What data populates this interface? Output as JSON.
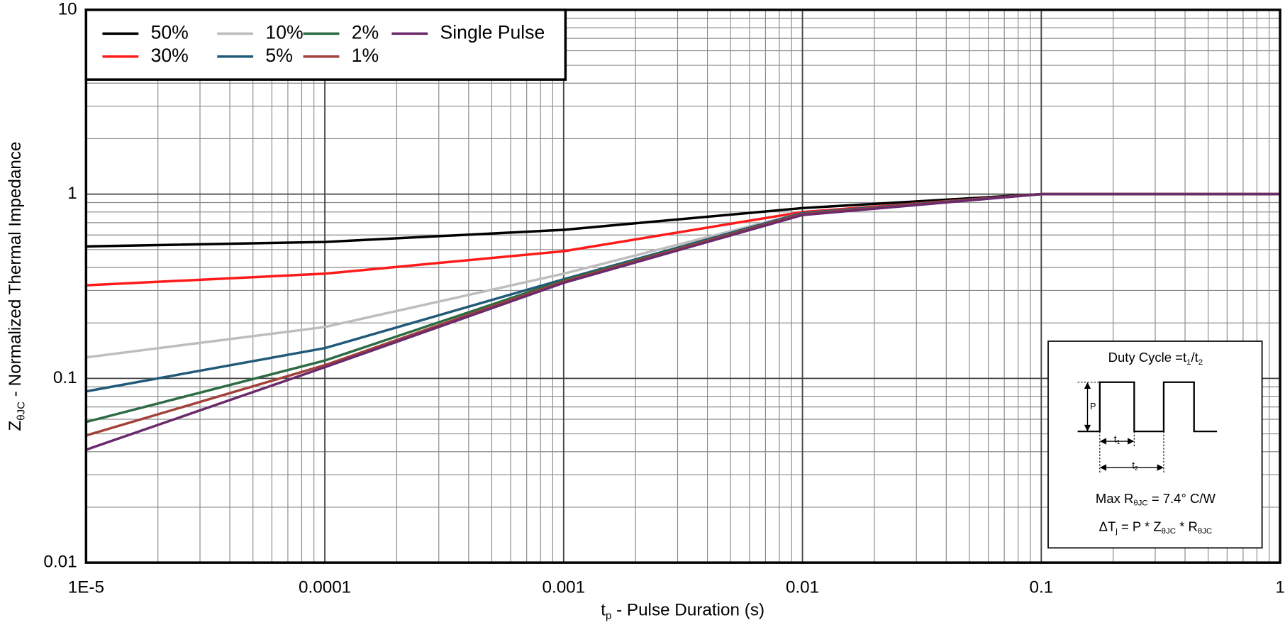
{
  "chart_data": {
    "type": "line",
    "x_label": [
      {
        "text": "t"
      },
      {
        "sub": "p"
      },
      {
        "text": " - Pulse Duration (s)"
      }
    ],
    "y_label": [
      {
        "text": "Z"
      },
      {
        "sub": "θJC"
      },
      {
        "text": " - Normalized Thermal Impedance"
      }
    ],
    "x": [
      1e-05,
      0.0001,
      0.001,
      0.01,
      0.1,
      1
    ],
    "series": [
      {
        "name": "50%",
        "color": "#000000",
        "values": [
          0.52,
          0.55,
          0.64,
          0.84,
          1,
          1
        ]
      },
      {
        "name": "30%",
        "color": "#ff1a1a",
        "values": [
          0.32,
          0.37,
          0.49,
          0.8,
          1,
          1
        ]
      },
      {
        "name": "10%",
        "color": "#bdbdbd",
        "values": [
          0.13,
          0.19,
          0.37,
          0.79,
          1,
          1
        ]
      },
      {
        "name": "5%",
        "color": "#215a78",
        "values": [
          0.085,
          0.146,
          0.345,
          0.79,
          1,
          1
        ]
      },
      {
        "name": "2%",
        "color": "#2d6b45",
        "values": [
          0.058,
          0.125,
          0.34,
          0.78,
          1,
          1
        ]
      },
      {
        "name": "1%",
        "color": "#a3403a",
        "values": [
          0.049,
          0.118,
          0.335,
          0.78,
          1,
          1
        ]
      },
      {
        "name": "Single Pulse",
        "color": "#6a2a6c",
        "values": [
          0.041,
          0.115,
          0.33,
          0.77,
          1,
          1
        ]
      }
    ],
    "xscale": "log",
    "yscale": "log",
    "xlim": [
      1e-05,
      1
    ],
    "ylim": [
      0.01,
      10
    ],
    "xticks": [
      {
        "value": 1e-05,
        "label": "1E-5"
      },
      0.0001,
      0.001,
      0.01,
      0.1,
      1
    ],
    "yticks": [
      0.01,
      0.1,
      1,
      10
    ],
    "grid": true,
    "minor_grid": true,
    "legend_position": "top-left",
    "inset": {
      "title": [
        {
          "text": "Duty Cycle =t"
        },
        {
          "sub": "1"
        },
        {
          "text": "/t"
        },
        {
          "sub": "2"
        }
      ],
      "p_label": "P",
      "t1_label": [
        {
          "text": "t"
        },
        {
          "sub": "1"
        }
      ],
      "t2_label": [
        {
          "text": "t"
        },
        {
          "sub": "2"
        }
      ],
      "max_r": [
        {
          "text": "Max R"
        },
        {
          "sub": "θJC"
        },
        {
          "text": " = 7.4° C/W"
        }
      ],
      "delta": [
        {
          "text": "ΔT"
        },
        {
          "sub": "j"
        },
        {
          "text": " = P * Z"
        },
        {
          "sub": "θJC"
        },
        {
          "text": " * R"
        },
        {
          "sub": "θJC"
        }
      ]
    }
  }
}
